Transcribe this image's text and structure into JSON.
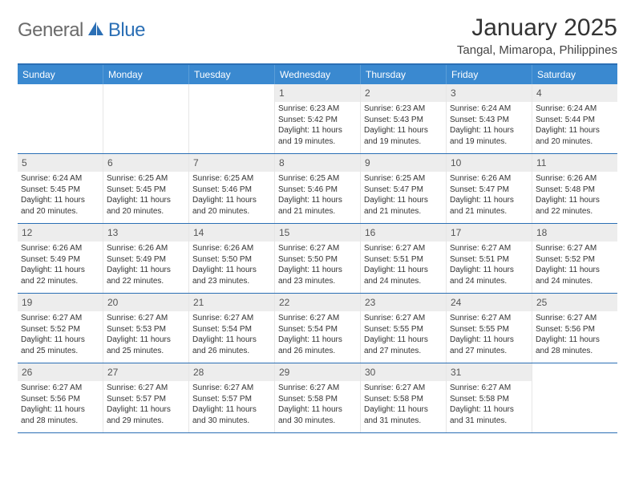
{
  "logo": {
    "word1": "General",
    "word2": "Blue"
  },
  "title": "January 2025",
  "location": "Tangal, Mimaropa, Philippines",
  "weekdays": [
    "Sunday",
    "Monday",
    "Tuesday",
    "Wednesday",
    "Thursday",
    "Friday",
    "Saturday"
  ],
  "colors": {
    "header_bg": "#3a89d0",
    "header_border": "#2b6fb5",
    "daynum_bg": "#ededed",
    "text": "#333333",
    "logo_gray": "#6b6b6b",
    "logo_blue": "#2b6fb5"
  },
  "first_weekday_index": 3,
  "days": [
    {
      "n": "1",
      "sunrise": "6:23 AM",
      "sunset": "5:42 PM",
      "daylight": "11 hours and 19 minutes."
    },
    {
      "n": "2",
      "sunrise": "6:23 AM",
      "sunset": "5:43 PM",
      "daylight": "11 hours and 19 minutes."
    },
    {
      "n": "3",
      "sunrise": "6:24 AM",
      "sunset": "5:43 PM",
      "daylight": "11 hours and 19 minutes."
    },
    {
      "n": "4",
      "sunrise": "6:24 AM",
      "sunset": "5:44 PM",
      "daylight": "11 hours and 20 minutes."
    },
    {
      "n": "5",
      "sunrise": "6:24 AM",
      "sunset": "5:45 PM",
      "daylight": "11 hours and 20 minutes."
    },
    {
      "n": "6",
      "sunrise": "6:25 AM",
      "sunset": "5:45 PM",
      "daylight": "11 hours and 20 minutes."
    },
    {
      "n": "7",
      "sunrise": "6:25 AM",
      "sunset": "5:46 PM",
      "daylight": "11 hours and 20 minutes."
    },
    {
      "n": "8",
      "sunrise": "6:25 AM",
      "sunset": "5:46 PM",
      "daylight": "11 hours and 21 minutes."
    },
    {
      "n": "9",
      "sunrise": "6:25 AM",
      "sunset": "5:47 PM",
      "daylight": "11 hours and 21 minutes."
    },
    {
      "n": "10",
      "sunrise": "6:26 AM",
      "sunset": "5:47 PM",
      "daylight": "11 hours and 21 minutes."
    },
    {
      "n": "11",
      "sunrise": "6:26 AM",
      "sunset": "5:48 PM",
      "daylight": "11 hours and 22 minutes."
    },
    {
      "n": "12",
      "sunrise": "6:26 AM",
      "sunset": "5:49 PM",
      "daylight": "11 hours and 22 minutes."
    },
    {
      "n": "13",
      "sunrise": "6:26 AM",
      "sunset": "5:49 PM",
      "daylight": "11 hours and 22 minutes."
    },
    {
      "n": "14",
      "sunrise": "6:26 AM",
      "sunset": "5:50 PM",
      "daylight": "11 hours and 23 minutes."
    },
    {
      "n": "15",
      "sunrise": "6:27 AM",
      "sunset": "5:50 PM",
      "daylight": "11 hours and 23 minutes."
    },
    {
      "n": "16",
      "sunrise": "6:27 AM",
      "sunset": "5:51 PM",
      "daylight": "11 hours and 24 minutes."
    },
    {
      "n": "17",
      "sunrise": "6:27 AM",
      "sunset": "5:51 PM",
      "daylight": "11 hours and 24 minutes."
    },
    {
      "n": "18",
      "sunrise": "6:27 AM",
      "sunset": "5:52 PM",
      "daylight": "11 hours and 24 minutes."
    },
    {
      "n": "19",
      "sunrise": "6:27 AM",
      "sunset": "5:52 PM",
      "daylight": "11 hours and 25 minutes."
    },
    {
      "n": "20",
      "sunrise": "6:27 AM",
      "sunset": "5:53 PM",
      "daylight": "11 hours and 25 minutes."
    },
    {
      "n": "21",
      "sunrise": "6:27 AM",
      "sunset": "5:54 PM",
      "daylight": "11 hours and 26 minutes."
    },
    {
      "n": "22",
      "sunrise": "6:27 AM",
      "sunset": "5:54 PM",
      "daylight": "11 hours and 26 minutes."
    },
    {
      "n": "23",
      "sunrise": "6:27 AM",
      "sunset": "5:55 PM",
      "daylight": "11 hours and 27 minutes."
    },
    {
      "n": "24",
      "sunrise": "6:27 AM",
      "sunset": "5:55 PM",
      "daylight": "11 hours and 27 minutes."
    },
    {
      "n": "25",
      "sunrise": "6:27 AM",
      "sunset": "5:56 PM",
      "daylight": "11 hours and 28 minutes."
    },
    {
      "n": "26",
      "sunrise": "6:27 AM",
      "sunset": "5:56 PM",
      "daylight": "11 hours and 28 minutes."
    },
    {
      "n": "27",
      "sunrise": "6:27 AM",
      "sunset": "5:57 PM",
      "daylight": "11 hours and 29 minutes."
    },
    {
      "n": "28",
      "sunrise": "6:27 AM",
      "sunset": "5:57 PM",
      "daylight": "11 hours and 30 minutes."
    },
    {
      "n": "29",
      "sunrise": "6:27 AM",
      "sunset": "5:58 PM",
      "daylight": "11 hours and 30 minutes."
    },
    {
      "n": "30",
      "sunrise": "6:27 AM",
      "sunset": "5:58 PM",
      "daylight": "11 hours and 31 minutes."
    },
    {
      "n": "31",
      "sunrise": "6:27 AM",
      "sunset": "5:58 PM",
      "daylight": "11 hours and 31 minutes."
    }
  ],
  "labels": {
    "sunrise": "Sunrise:",
    "sunset": "Sunset:",
    "daylight": "Daylight:"
  }
}
